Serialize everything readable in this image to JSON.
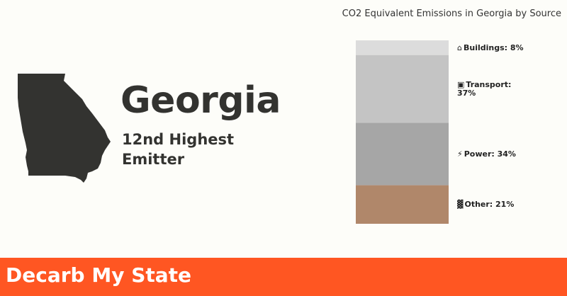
{
  "state": {
    "name": "Georgia",
    "rank_text": "12nd Highest Emitter",
    "map_color": "#333330"
  },
  "chart_data": {
    "type": "bar",
    "stacked": true,
    "title": "CO2 Equivalent Emissions in Georgia by Source",
    "unit": "%",
    "series": [
      {
        "name": "Buildings",
        "value": 8,
        "label": "Buildings: 8%",
        "icon": "house-icon",
        "color": "#dcdcdc"
      },
      {
        "name": "Transport",
        "value": 37,
        "label": "Transport: 37%",
        "icon": "car-icon",
        "color": "#c4c4c4"
      },
      {
        "name": "Power",
        "value": 34,
        "label": "Power: 34%",
        "icon": "plug-icon",
        "color": "#a6a6a6"
      },
      {
        "name": "Other",
        "value": 21,
        "label": "Other: 21%",
        "icon": "factory-icon",
        "color": "#b0876a"
      }
    ]
  },
  "footer": {
    "brand": "Decarb My State",
    "color": "#ff5622"
  }
}
